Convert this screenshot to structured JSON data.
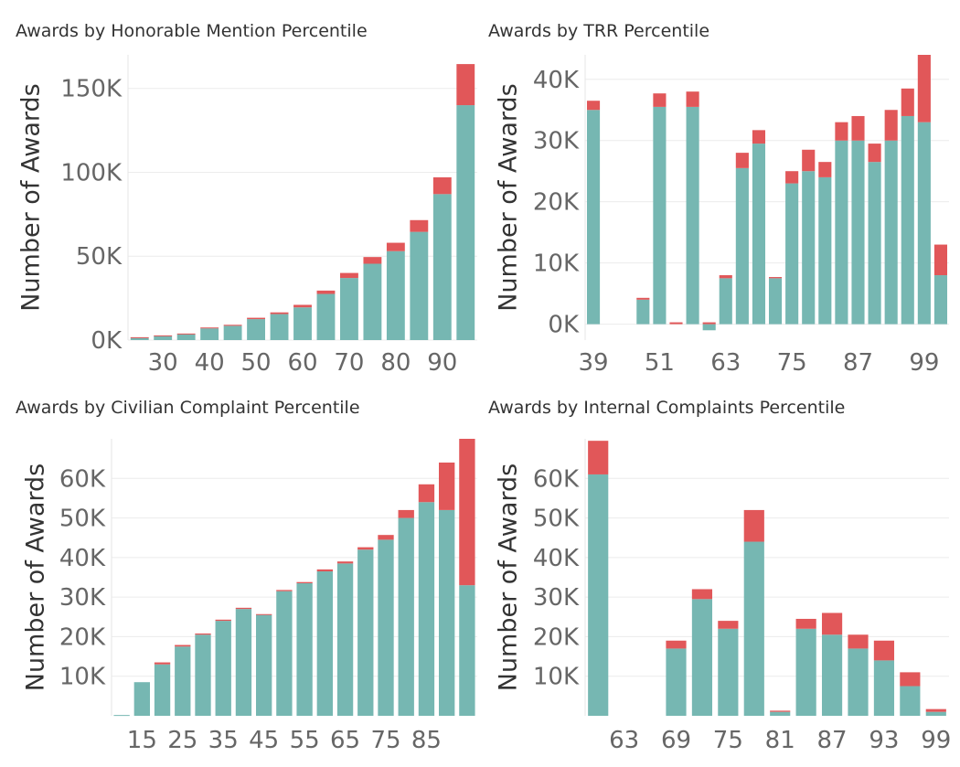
{
  "chart_data": [
    {
      "type": "bar",
      "stacked": true,
      "title": "Awards by Honorable Mention Percentile",
      "xlabel": "",
      "ylabel": "Number of Awards",
      "ylim": [
        0,
        170000
      ],
      "yticks": [
        0,
        50000,
        100000,
        150000
      ],
      "ytick_labels": [
        "0K",
        "50K",
        "100K",
        "150K"
      ],
      "x_first": 25,
      "x_step": 5,
      "xticks": [
        30,
        40,
        50,
        60,
        70,
        80,
        90
      ],
      "series": [
        {
          "name": "",
          "color": "#76b7b2",
          "values": [
            1500,
            2500,
            3500,
            7000,
            8500,
            12500,
            15500,
            19500,
            27500,
            37000,
            45500,
            53000,
            64500,
            87000,
            140000
          ]
        },
        {
          "name": "",
          "color": "#e15759",
          "values": [
            200,
            300,
            400,
            500,
            600,
            800,
            1000,
            1500,
            2000,
            3000,
            4000,
            5000,
            7000,
            10000,
            24500
          ]
        }
      ],
      "grid": true
    },
    {
      "type": "bar",
      "stacked": true,
      "title": "Awards by TRR Percentile",
      "xlabel": "",
      "ylabel": "Number of Awards",
      "ylim": [
        -2600,
        44000
      ],
      "yticks": [
        0,
        10000,
        20000,
        30000,
        40000
      ],
      "ytick_labels": [
        "0K",
        "10K",
        "20K",
        "30K",
        "40K"
      ],
      "x_first": 39,
      "x_step": 3,
      "xticks": [
        39,
        51,
        63,
        75,
        87,
        99
      ],
      "series": [
        {
          "name": "",
          "color": "#76b7b2",
          "values": [
            35000,
            0,
            0,
            4000,
            35500,
            0,
            35500,
            -1000,
            7500,
            25500,
            29500,
            7500,
            23000,
            25000,
            24000,
            30000,
            30000,
            26500,
            30000,
            34000,
            33000,
            8000
          ]
        },
        {
          "name": "",
          "color": "#e15759",
          "values": [
            1500,
            0,
            0,
            300,
            2200,
            300,
            2500,
            300,
            500,
            2500,
            2200,
            200,
            2000,
            3500,
            2500,
            3000,
            4000,
            3000,
            5000,
            4500,
            11000,
            5000
          ]
        }
      ],
      "grid": true
    },
    {
      "type": "bar",
      "stacked": true,
      "title": "Awards by Civilian Complaint Percentile",
      "xlabel": "",
      "ylabel": "Number of Awards",
      "ylim": [
        0,
        70000
      ],
      "yticks": [
        10000,
        20000,
        30000,
        40000,
        50000,
        60000
      ],
      "ytick_labels": [
        "10K",
        "20K",
        "30K",
        "40K",
        "50K",
        "60K"
      ],
      "x_first": 10,
      "x_step": 5,
      "xticks": [
        15,
        25,
        35,
        45,
        55,
        65,
        75,
        85
      ],
      "series": [
        {
          "name": "",
          "color": "#76b7b2",
          "values": [
            200,
            8500,
            13000,
            17500,
            20500,
            24000,
            27000,
            25500,
            31500,
            33500,
            36500,
            38500,
            42000,
            44500,
            50000,
            54000,
            52000,
            33000
          ]
        },
        {
          "name": "",
          "color": "#e15759",
          "values": [
            0,
            0,
            500,
            400,
            300,
            300,
            300,
            200,
            300,
            300,
            500,
            500,
            600,
            1200,
            2000,
            4500,
            12000,
            37000
          ]
        }
      ],
      "grid": true
    },
    {
      "type": "bar",
      "stacked": true,
      "title": "Awards by Internal Complaints Percentile",
      "xlabel": "",
      "ylabel": "Number of Awards",
      "ylim": [
        0,
        70000
      ],
      "yticks": [
        10000,
        20000,
        30000,
        40000,
        50000,
        60000
      ],
      "ytick_labels": [
        "10K",
        "20K",
        "30K",
        "40K",
        "50K",
        "60K"
      ],
      "x_first": 60,
      "x_step": 3,
      "xticks": [
        63,
        69,
        75,
        81,
        87,
        93,
        99
      ],
      "series": [
        {
          "name": "",
          "color": "#76b7b2",
          "values": [
            61000,
            0,
            0,
            17000,
            29500,
            22000,
            44000,
            1000,
            22000,
            20500,
            17000,
            14000,
            7500,
            1000
          ]
        },
        {
          "name": "",
          "color": "#e15759",
          "values": [
            8500,
            0,
            0,
            2000,
            2500,
            2000,
            8000,
            300,
            2500,
            5500,
            3500,
            5000,
            3500,
            700
          ]
        }
      ],
      "grid": true
    }
  ]
}
